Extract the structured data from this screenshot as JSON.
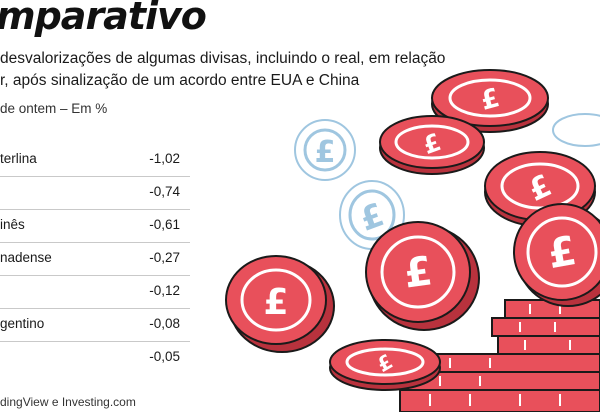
{
  "header": {
    "title": "mparativo",
    "subtitle_lines": [
      " desvalorizações de algumas divisas, incluindo o real, em relação",
      "r, após sinalização de um acordo entre EUA e China"
    ],
    "unit_note": " de ontem – Em %"
  },
  "chart_data": {
    "type": "table",
    "title": "mparativo",
    "rows": [
      {
        "label": "terlina",
        "value": "-1,02"
      },
      {
        "label": "",
        "value": "-0,74"
      },
      {
        "label": "inês",
        "value": "-0,61"
      },
      {
        "label": "nadense",
        "value": "-0,27"
      },
      {
        "label": "",
        "value": "-0,12"
      },
      {
        "label": "gentino",
        "value": "-0,08"
      },
      {
        "label": "",
        "value": "-0,05"
      }
    ]
  },
  "footer": {
    "source": "dingView e Investing.com"
  },
  "illustration": {
    "coin_symbol": "£",
    "colors": {
      "coin_red": "#e8505b",
      "coin_dark_red": "#b8323d",
      "coin_blue": "#9fc6e0",
      "outline": "#1a1a1a"
    }
  }
}
